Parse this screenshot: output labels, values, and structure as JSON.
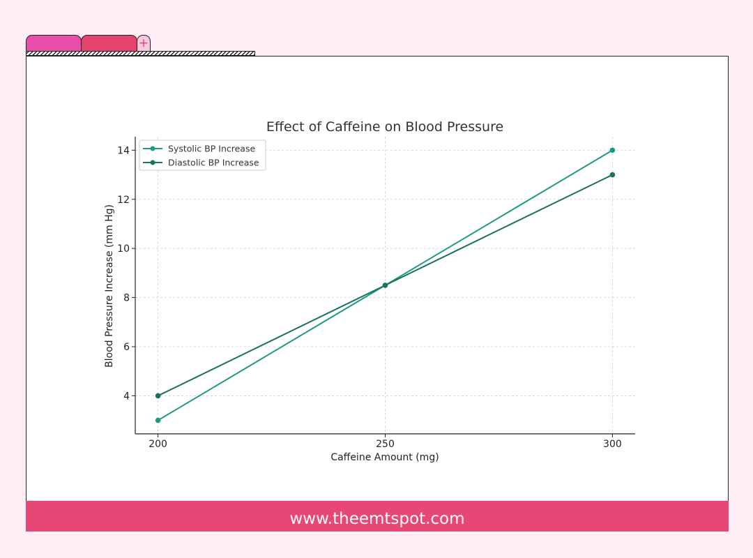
{
  "footer": {
    "text": "www.theemtspot.com"
  },
  "tabs": [
    {
      "color": "#e94eaa"
    },
    {
      "color": "#e6426e"
    }
  ],
  "add_tab_icon": "plus-icon",
  "chart_data": {
    "type": "line",
    "title": "Effect of Caffeine on Blood Pressure",
    "xlabel": "Caffeine Amount (mg)",
    "ylabel": "Blood Pressure Increase (mm Hg)",
    "x": [
      200,
      250,
      300
    ],
    "xticks": [
      200,
      250,
      300
    ],
    "yticks": [
      4,
      6,
      8,
      10,
      12,
      14
    ],
    "xlim": [
      195,
      305
    ],
    "ylim": [
      2.45,
      14.55
    ],
    "grid": true,
    "legend_position": "top-left",
    "series": [
      {
        "name": "Systolic BP Increase",
        "values": [
          3,
          8.5,
          14
        ],
        "color": "#1a9b85"
      },
      {
        "name": "Diastolic BP Increase",
        "values": [
          4,
          8.5,
          13
        ],
        "color": "#18725f"
      }
    ]
  }
}
